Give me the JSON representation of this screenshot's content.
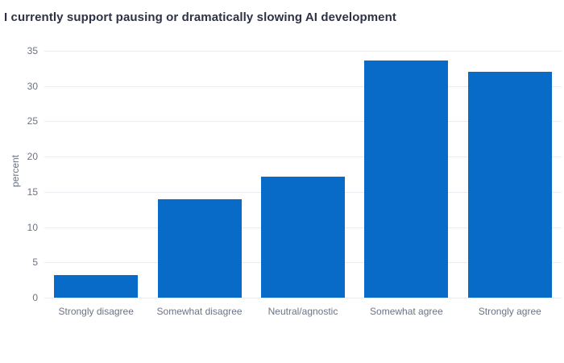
{
  "chart_data": {
    "type": "bar",
    "title": "I currently support pausing or dramatically slowing AI development",
    "categories": [
      "Strongly disagree",
      "Somewhat disagree",
      "Neutral/agnostic",
      "Somewhat agree",
      "Strongly agree"
    ],
    "values": [
      3.2,
      13.9,
      17.2,
      33.6,
      32.0
    ],
    "xlabel": "",
    "ylabel": "percent",
    "ylim": [
      0,
      35.9
    ],
    "yticks": [
      0,
      5,
      10,
      15,
      20,
      25,
      30,
      35
    ],
    "grid": true,
    "legend": "none",
    "colors": {
      "bar": "#086bc8",
      "title_text": "#2d3246",
      "axis_text": "#6c7384",
      "gridline": "#eaecf2",
      "background": "#ffffff"
    }
  }
}
